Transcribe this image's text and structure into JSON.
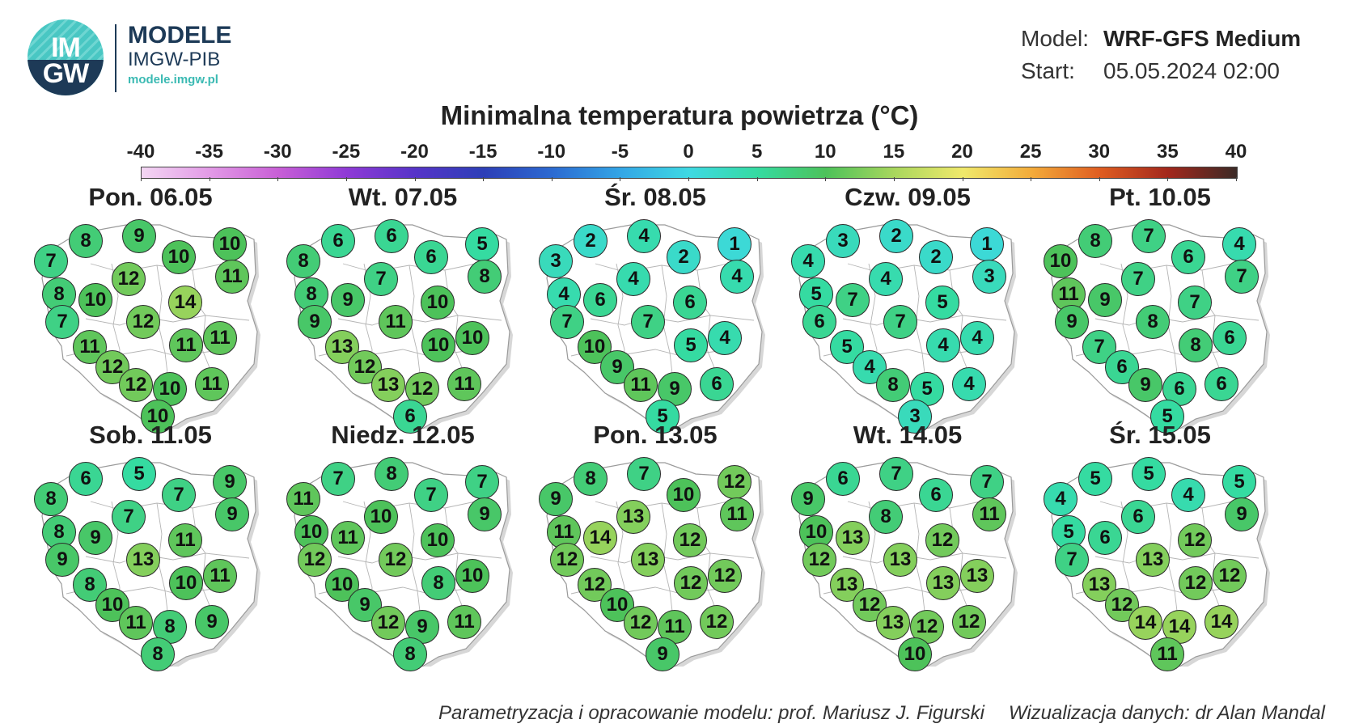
{
  "logo": {
    "badge_top": "IM",
    "badge_bottom": "GW",
    "line1": "MODELE",
    "line2": "IMGW-PIB",
    "url": "modele.imgw.pl"
  },
  "meta": {
    "model_key": "Model:",
    "model_value": "WRF-GFS Medium",
    "start_key": "Start:",
    "start_value": "05.05.2024 02:00"
  },
  "title": "Minimalna temperatura powietrza (°C)",
  "colorbar": {
    "ticks": [
      "-40",
      "-35",
      "-30",
      "-25",
      "-20",
      "-15",
      "-10",
      "-5",
      "0",
      "5",
      "10",
      "15",
      "20",
      "25",
      "30",
      "35",
      "40"
    ],
    "min": -40,
    "max": 40,
    "colors": {
      "-40": "#f3d6f3",
      "-35": "#e29ae6",
      "-30": "#c85fd6",
      "-25": "#8f3ad6",
      "-20": "#5634c8",
      "-15": "#2d3fb7",
      "-10": "#2c6ad1",
      "-5": "#33a6e6",
      "0": "#3ed9e3",
      "5": "#35dba1",
      "10": "#4dc25a",
      "15": "#a9d75d",
      "20": "#f0e96b",
      "25": "#f3ab3a",
      "30": "#df5d21",
      "35": "#a2271c",
      "40": "#3b2a26"
    }
  },
  "stations": [
    "S01",
    "S02",
    "S03",
    "S04",
    "S05",
    "S06",
    "S07",
    "S08",
    "S09",
    "S10",
    "S11",
    "S12",
    "S13",
    "S14",
    "S15",
    "S16",
    "S17",
    "S18",
    "S19",
    "S20"
  ],
  "days": [
    {
      "label": "Pon. 06.05",
      "values": [
        7,
        8,
        9,
        10,
        10,
        12,
        11,
        8,
        10,
        14,
        7,
        12,
        11,
        11,
        11,
        12,
        12,
        10,
        11,
        10
      ]
    },
    {
      "label": "Wt. 07.05",
      "values": [
        8,
        6,
        6,
        6,
        5,
        7,
        8,
        8,
        9,
        10,
        9,
        11,
        13,
        10,
        10,
        12,
        13,
        12,
        11,
        6
      ]
    },
    {
      "label": "Śr. 08.05",
      "values": [
        3,
        2,
        4,
        2,
        1,
        4,
        4,
        4,
        6,
        6,
        7,
        7,
        10,
        5,
        4,
        9,
        11,
        9,
        6,
        5
      ]
    },
    {
      "label": "Czw. 09.05",
      "values": [
        4,
        3,
        2,
        2,
        1,
        4,
        3,
        5,
        7,
        5,
        6,
        7,
        5,
        4,
        4,
        4,
        8,
        5,
        4,
        3
      ]
    },
    {
      "label": "Pt. 10.05",
      "values": [
        10,
        8,
        7,
        6,
        4,
        7,
        7,
        11,
        9,
        7,
        9,
        8,
        7,
        8,
        6,
        6,
        9,
        6,
        6,
        5
      ]
    },
    {
      "label": "Sob. 11.05",
      "values": [
        8,
        6,
        5,
        7,
        9,
        7,
        9,
        8,
        9,
        11,
        9,
        13,
        8,
        10,
        11,
        10,
        11,
        8,
        9,
        8
      ]
    },
    {
      "label": "Niedz. 12.05",
      "values": [
        11,
        7,
        8,
        7,
        7,
        10,
        9,
        10,
        11,
        10,
        12,
        12,
        10,
        8,
        10,
        9,
        12,
        9,
        11,
        8
      ]
    },
    {
      "label": "Pon. 13.05",
      "values": [
        9,
        8,
        7,
        10,
        12,
        13,
        11,
        11,
        14,
        12,
        12,
        13,
        12,
        12,
        12,
        10,
        12,
        11,
        12,
        9
      ]
    },
    {
      "label": "Wt. 14.05",
      "values": [
        9,
        6,
        7,
        6,
        7,
        8,
        11,
        10,
        13,
        12,
        12,
        13,
        13,
        13,
        13,
        12,
        13,
        12,
        12,
        10
      ]
    },
    {
      "label": "Śr. 15.05",
      "values": [
        4,
        5,
        5,
        4,
        5,
        6,
        9,
        5,
        6,
        12,
        7,
        13,
        13,
        12,
        12,
        12,
        14,
        14,
        14,
        11
      ]
    }
  ],
  "credits": {
    "left": "Parametryzacja i opracowanie modelu: prof. Mariusz J. Figurski",
    "right": "Wizualizacja danych: dr Alan Mandal"
  }
}
